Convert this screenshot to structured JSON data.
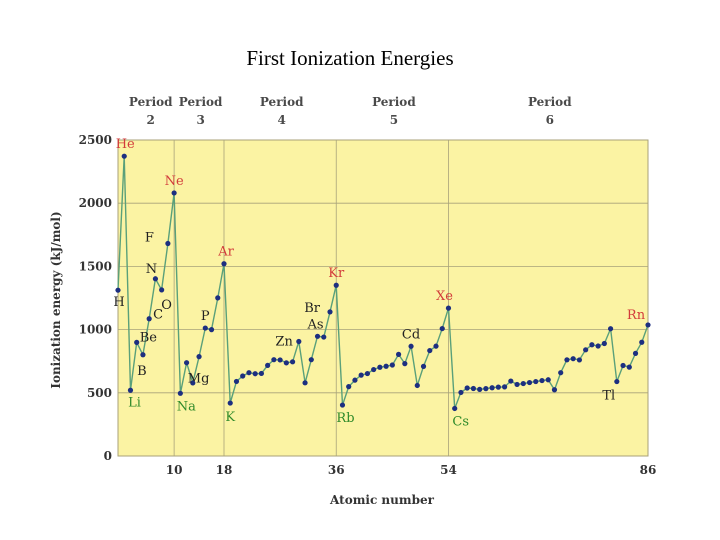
{
  "title": "First Ionization Energies",
  "chart_data": {
    "type": "line",
    "title": "First Ionization Energies",
    "xlabel": "Atomic number",
    "ylabel": "Ionization energy (kJ/mol)",
    "xlim": [
      1,
      86
    ],
    "ylim": [
      0,
      2500
    ],
    "yticks": [
      0,
      500,
      1000,
      1500,
      2000,
      2500
    ],
    "xticks": [
      10,
      18,
      36,
      54,
      86
    ],
    "grid": true,
    "colors": {
      "background": "#fbf3a3",
      "line": "#5aa07a",
      "marker": "#1d2f80",
      "noble_label": "#d23b3b",
      "alkali_label": "#2f8a2a",
      "other_label": "#222222",
      "grid": "#a8a27a"
    },
    "periods": [
      {
        "label": "Period",
        "number": "2",
        "range": [
          3,
          10
        ]
      },
      {
        "label": "Period",
        "number": "3",
        "range": [
          11,
          18
        ]
      },
      {
        "label": "Period",
        "number": "4",
        "range": [
          19,
          36
        ]
      },
      {
        "label": "Period",
        "number": "5",
        "range": [
          37,
          54
        ]
      },
      {
        "label": "Period",
        "number": "6",
        "range": [
          55,
          86
        ]
      }
    ],
    "x": [
      1,
      2,
      3,
      4,
      5,
      6,
      7,
      8,
      9,
      10,
      11,
      12,
      13,
      14,
      15,
      16,
      17,
      18,
      19,
      20,
      21,
      22,
      23,
      24,
      25,
      26,
      27,
      28,
      29,
      30,
      31,
      32,
      33,
      34,
      35,
      36,
      37,
      38,
      39,
      40,
      41,
      42,
      43,
      44,
      45,
      46,
      47,
      48,
      49,
      50,
      51,
      52,
      53,
      54,
      55,
      56,
      57,
      58,
      59,
      60,
      61,
      62,
      63,
      64,
      65,
      66,
      67,
      68,
      69,
      70,
      71,
      72,
      73,
      74,
      75,
      76,
      77,
      78,
      79,
      80,
      81,
      82,
      83,
      84,
      85,
      86
    ],
    "y": [
      1312,
      2372,
      520,
      899,
      801,
      1086,
      1402,
      1314,
      1681,
      2081,
      496,
      738,
      578,
      786,
      1012,
      1000,
      1251,
      1521,
      419,
      590,
      633,
      659,
      651,
      653,
      717,
      762,
      760,
      737,
      745,
      906,
      579,
      762,
      947,
      941,
      1140,
      1351,
      403,
      549,
      600,
      640,
      652,
      684,
      702,
      710,
      720,
      804,
      731,
      868,
      558,
      709,
      834,
      869,
      1008,
      1170,
      376,
      503,
      538,
      534,
      527,
      533,
      540,
      545,
      547,
      593,
      566,
      573,
      581,
      589,
      597,
      603,
      524,
      659,
      761,
      770,
      760,
      840,
      880,
      870,
      890,
      1007,
      589,
      716,
      703,
      812,
      900,
      1037
    ],
    "labels": [
      {
        "text": "H",
        "z": 1,
        "kind": "other"
      },
      {
        "text": "He",
        "z": 2,
        "kind": "noble"
      },
      {
        "text": "Li",
        "z": 3,
        "kind": "alkali"
      },
      {
        "text": "Be",
        "z": 4,
        "kind": "other"
      },
      {
        "text": "B",
        "z": 5,
        "kind": "other"
      },
      {
        "text": "C",
        "z": 6,
        "kind": "other"
      },
      {
        "text": "N",
        "z": 7,
        "kind": "other"
      },
      {
        "text": "O",
        "z": 8,
        "kind": "other"
      },
      {
        "text": "F",
        "z": 9,
        "kind": "other"
      },
      {
        "text": "Ne",
        "z": 10,
        "kind": "noble"
      },
      {
        "text": "Na",
        "z": 11,
        "kind": "alkali"
      },
      {
        "text": "Mg",
        "z": 12,
        "kind": "other"
      },
      {
        "text": "P",
        "z": 15,
        "kind": "other"
      },
      {
        "text": "Ar",
        "z": 18,
        "kind": "noble"
      },
      {
        "text": "K",
        "z": 19,
        "kind": "alkali"
      },
      {
        "text": "Zn",
        "z": 30,
        "kind": "other"
      },
      {
        "text": "As",
        "z": 33,
        "kind": "other"
      },
      {
        "text": "Br",
        "z": 35,
        "kind": "other"
      },
      {
        "text": "Kr",
        "z": 36,
        "kind": "noble"
      },
      {
        "text": "Rb",
        "z": 37,
        "kind": "alkali"
      },
      {
        "text": "Cd",
        "z": 48,
        "kind": "other"
      },
      {
        "text": "Xe",
        "z": 54,
        "kind": "noble"
      },
      {
        "text": "Cs",
        "z": 55,
        "kind": "alkali"
      },
      {
        "text": "Tl",
        "z": 81,
        "kind": "other"
      },
      {
        "text": "Rn",
        "z": 86,
        "kind": "noble"
      }
    ]
  }
}
